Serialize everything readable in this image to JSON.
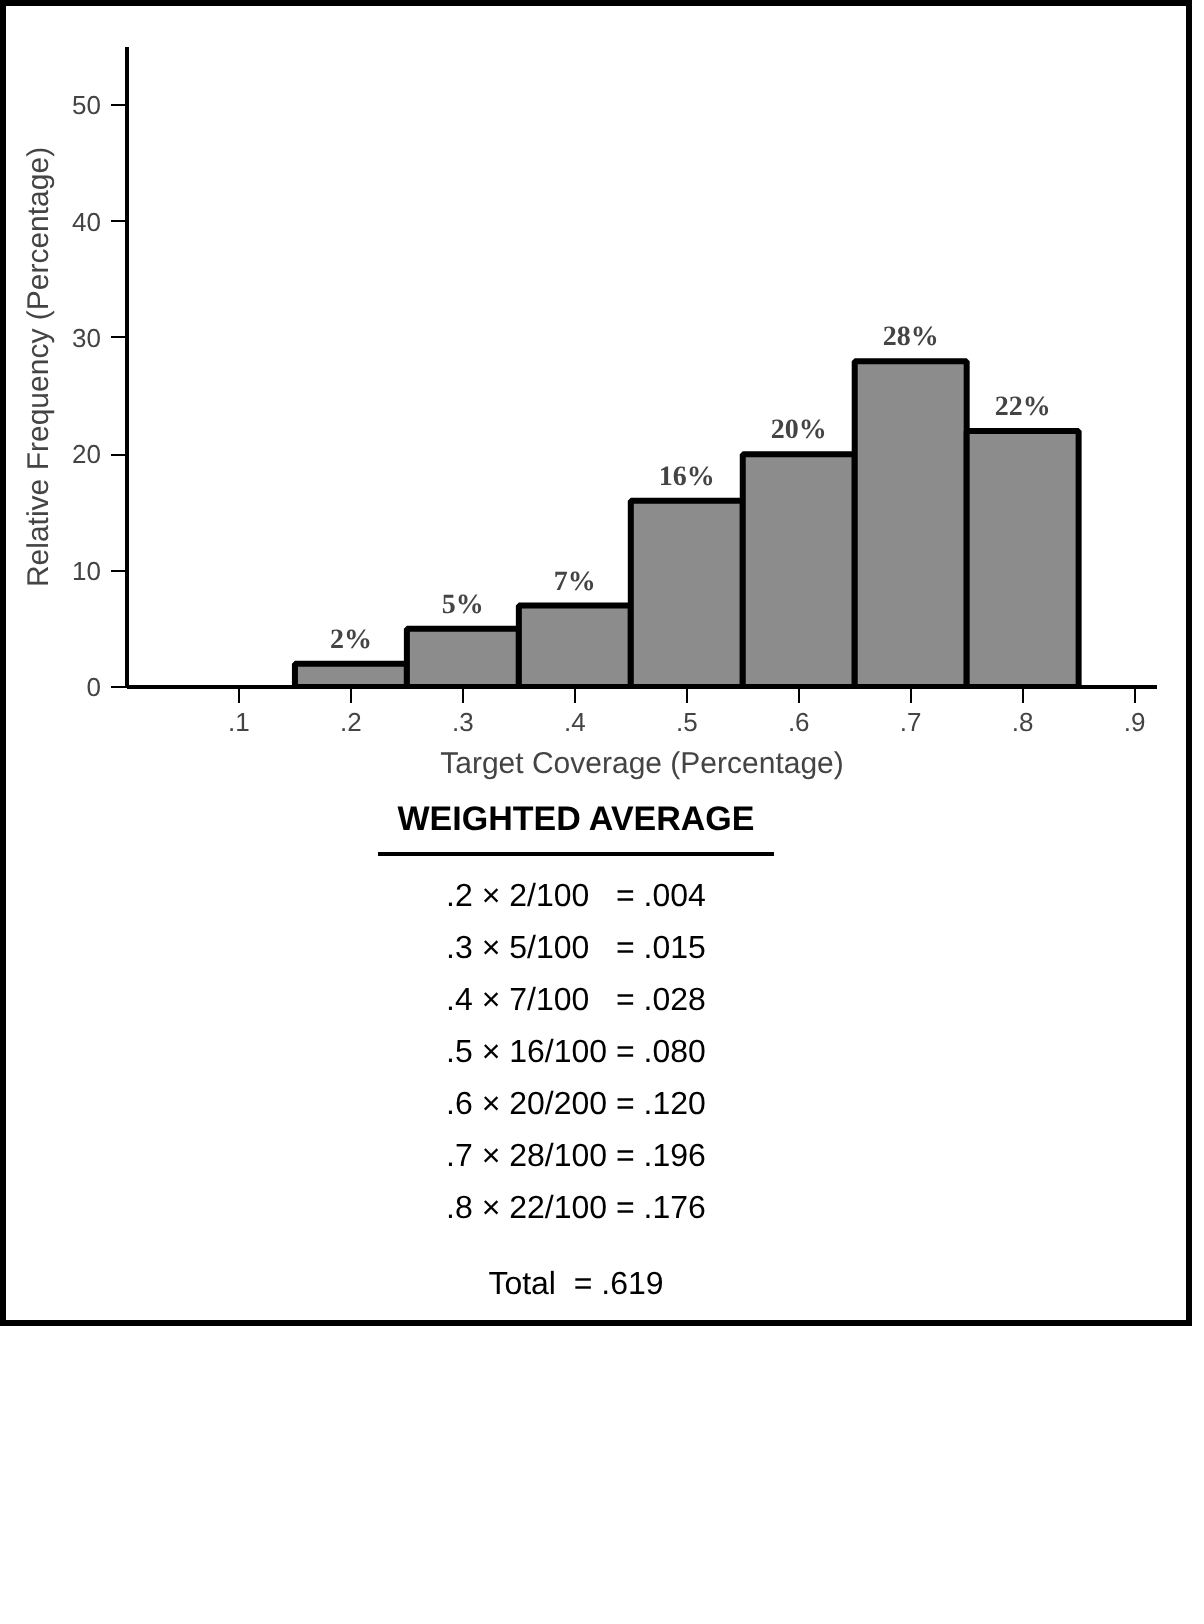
{
  "chart_data": {
    "type": "bar",
    "x": [
      0.2,
      0.3,
      0.4,
      0.5,
      0.6,
      0.7,
      0.8
    ],
    "values": [
      2,
      5,
      7,
      16,
      20,
      28,
      22
    ],
    "value_labels": [
      "2%",
      "5%",
      "7%",
      "16%",
      "20%",
      "28%",
      "22%"
    ],
    "color": "#8c8c8c",
    "xlabel": "Target Coverage (Percentage)",
    "ylabel": "Relative Frequency (Percentage)",
    "xlim": [
      0,
      0.92
    ],
    "ylim": [
      0,
      55
    ],
    "xticks": [
      {
        "value": 0.1,
        "label": ".1"
      },
      {
        "value": 0.2,
        "label": ".2"
      },
      {
        "value": 0.3,
        "label": ".3"
      },
      {
        "value": 0.4,
        "label": ".4"
      },
      {
        "value": 0.5,
        "label": ".5"
      },
      {
        "value": 0.6,
        "label": ".6"
      },
      {
        "value": 0.7,
        "label": ".7"
      },
      {
        "value": 0.8,
        "label": ".8"
      },
      {
        "value": 0.9,
        "label": ".9"
      }
    ],
    "yticks": [
      0,
      10,
      20,
      30,
      40,
      50
    ],
    "grid": false,
    "annotations": [
      "WEIGHTED AVERAGE",
      ".2 × 2/100   = .004",
      ".3 × 5/100   = .015",
      ".4 × 7/100   = .028",
      ".5 × 16/100 = .080",
      ".6 × 20/200 = .120",
      ".7 × 28/100 = .196",
      ".8 × 22/100 = .176",
      "Total  = .619"
    ]
  }
}
